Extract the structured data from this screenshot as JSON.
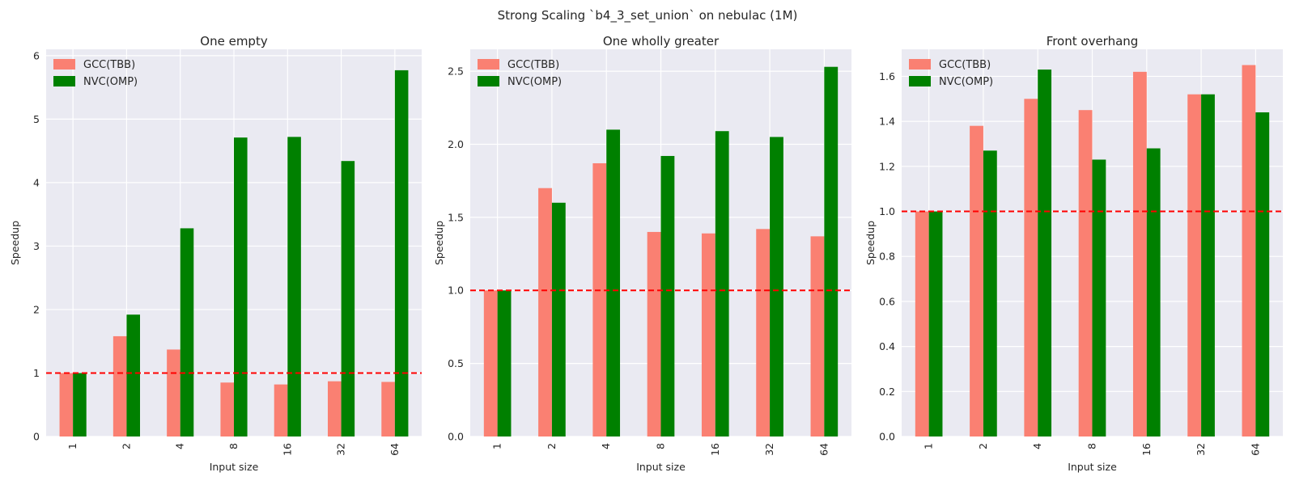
{
  "figure": {
    "suptitle": "Strong Scaling `b4_3_set_union` on nebulac (1M)"
  },
  "colors": {
    "panel_background": "#eaeaf2",
    "grid": "#ffffff",
    "gcc": "#fa8072",
    "nvc": "#008000",
    "baseline": "#ff0000"
  },
  "chart_data": [
    {
      "type": "bar",
      "title": "One empty",
      "xlabel": "Input size",
      "ylabel": "Speedup",
      "categories": [
        "1",
        "2",
        "4",
        "8",
        "16",
        "32",
        "64"
      ],
      "series": [
        {
          "name": "GCC(TBB)",
          "values": [
            1.0,
            1.58,
            1.37,
            0.85,
            0.82,
            0.87,
            0.86
          ]
        },
        {
          "name": "NVC(OMP)",
          "values": [
            1.0,
            1.92,
            3.28,
            4.71,
            4.72,
            4.34,
            5.77
          ]
        }
      ],
      "ylim": [
        0,
        6.1
      ],
      "yticks": [
        0,
        1,
        2,
        3,
        4,
        5,
        6
      ],
      "ytick_labels": [
        "0",
        "1",
        "2",
        "3",
        "4",
        "5",
        "6"
      ],
      "reference_line": 1.0,
      "legend": "upper left",
      "grid": true
    },
    {
      "type": "bar",
      "title": "One wholly greater",
      "xlabel": "Input size",
      "ylabel": "Speedup",
      "categories": [
        "1",
        "2",
        "4",
        "8",
        "16",
        "32",
        "64"
      ],
      "series": [
        {
          "name": "GCC(TBB)",
          "values": [
            1.0,
            1.7,
            1.87,
            1.4,
            1.39,
            1.42,
            1.37
          ]
        },
        {
          "name": "NVC(OMP)",
          "values": [
            1.0,
            1.6,
            2.1,
            1.92,
            2.09,
            2.05,
            2.53
          ]
        }
      ],
      "ylim": [
        0,
        2.65
      ],
      "yticks": [
        0,
        0.5,
        1.0,
        1.5,
        2.0,
        2.5
      ],
      "ytick_labels": [
        "0.0",
        "0.5",
        "1.0",
        "1.5",
        "2.0",
        "2.5"
      ],
      "reference_line": 1.0,
      "legend": "upper left",
      "grid": true
    },
    {
      "type": "bar",
      "title": "Front overhang",
      "xlabel": "Input size",
      "ylabel": "Speedup",
      "categories": [
        "1",
        "2",
        "4",
        "8",
        "16",
        "32",
        "64"
      ],
      "series": [
        {
          "name": "GCC(TBB)",
          "values": [
            1.0,
            1.38,
            1.5,
            1.45,
            1.62,
            1.52,
            1.65
          ]
        },
        {
          "name": "NVC(OMP)",
          "values": [
            1.0,
            1.27,
            1.63,
            1.23,
            1.28,
            1.52,
            1.44
          ]
        }
      ],
      "ylim": [
        0,
        1.72
      ],
      "yticks": [
        0,
        0.2,
        0.4,
        0.6,
        0.8,
        1.0,
        1.2,
        1.4,
        1.6
      ],
      "ytick_labels": [
        "0.0",
        "0.2",
        "0.4",
        "0.6",
        "0.8",
        "1.0",
        "1.2",
        "1.4",
        "1.6"
      ],
      "reference_line": 1.0,
      "legend": "upper left",
      "grid": true
    }
  ]
}
